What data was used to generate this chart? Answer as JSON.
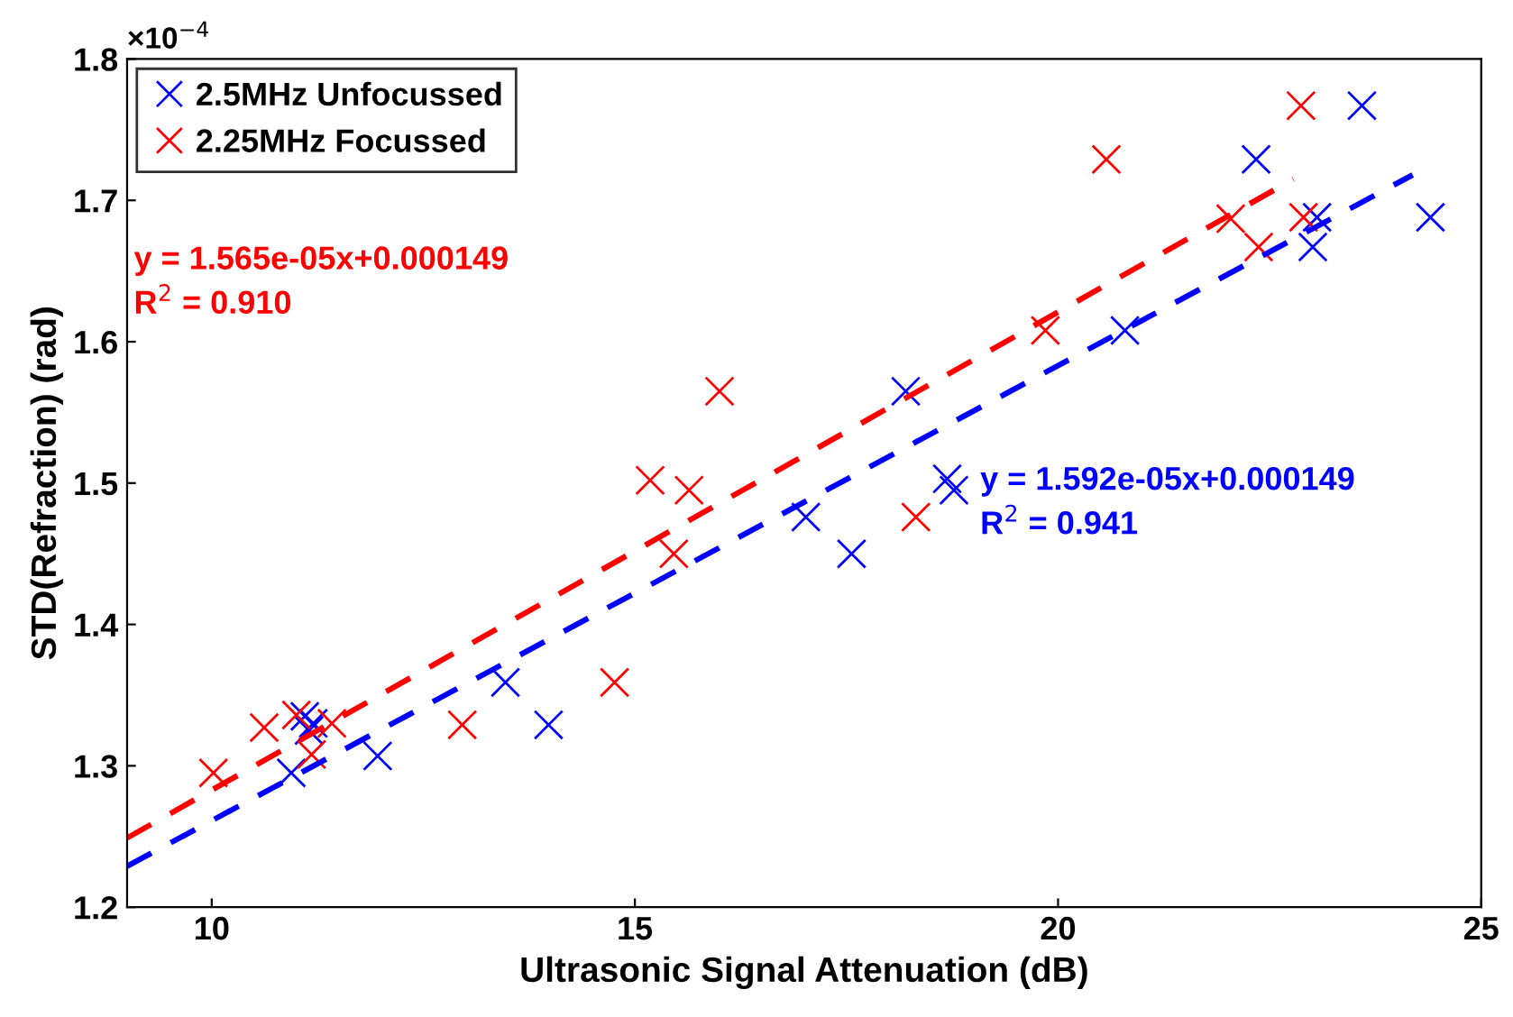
{
  "chart_data": {
    "type": "scatter",
    "xlabel": "Ultrasonic Signal Attenuation (dB)",
    "ylabel": "STD(Refraction) (rad)",
    "xlim": [
      9,
      25
    ],
    "xticks": [
      10,
      15,
      20,
      25
    ],
    "ylim": [
      1.2,
      1.8
    ],
    "yticks": [
      1.2,
      1.3,
      1.4,
      1.5,
      1.6,
      1.7,
      1.8
    ],
    "grid": false,
    "legend": "top left",
    "marker": "cross",
    "annotations": [
      "×10$^{−4}$",
      "y = 1.565e-05x+0.000149\nR$^{2}$ = 0.910",
      "y = 1.592e-05x+0.000149\nR$^{2}$ = 0.941"
    ],
    "series": [
      {
        "name": "2.5MHz Unfocussed",
        "color": "#0000ff",
        "x": [
          10.94,
          11.1,
          11.2,
          11.15,
          11.96,
          13.47,
          13.98,
          17.02,
          17.56,
          18.2,
          18.69,
          18.77,
          20.79,
          22.34,
          23.01,
          23.06,
          23.59,
          24.4
        ],
        "values": [
          1.295,
          1.335,
          1.33,
          1.325,
          1.307,
          1.359,
          1.329,
          1.476,
          1.45,
          1.565,
          1.503,
          1.495,
          1.608,
          1.729,
          1.667,
          1.688,
          1.767,
          1.688
        ]
      },
      {
        "name": "2.25MHz Focussed",
        "color": "#ff0000",
        "x": [
          10.02,
          10.62,
          11.0,
          11.18,
          11.42,
          12.96,
          14.76,
          15.18,
          15.46,
          15.64,
          16.0,
          18.32,
          19.85,
          20.57,
          22.04,
          22.37,
          22.87,
          22.9
        ],
        "values": [
          1.295,
          1.327,
          1.336,
          1.308,
          1.33,
          1.329,
          1.359,
          1.502,
          1.45,
          1.495,
          1.565,
          1.476,
          1.608,
          1.729,
          1.687,
          1.667,
          1.767,
          1.688
        ]
      },
      {
        "type": "line",
        "color": "#0000ff",
        "line_style": "dashed",
        "marker": "none",
        "x": [
          9,
          24.19
        ],
        "values": [
          1.229,
          1.718
        ]
      },
      {
        "type": "line",
        "color": "#ff0000",
        "line_style": "dashed",
        "marker": "none",
        "x": [
          9,
          22.78
        ],
        "values": [
          1.249,
          1.715
        ]
      }
    ]
  }
}
